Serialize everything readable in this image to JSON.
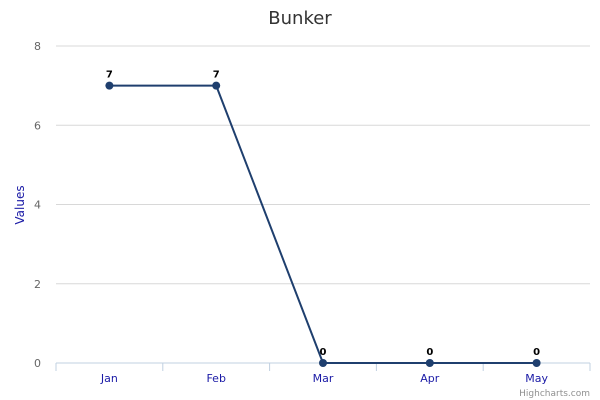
{
  "chart_data": {
    "type": "line",
    "title": "Bunker",
    "xlabel": "",
    "ylabel": "Values",
    "categories": [
      "Jan",
      "Feb",
      "Mar",
      "Apr",
      "May"
    ],
    "series": [
      {
        "values": [
          7,
          7,
          0,
          0,
          0
        ],
        "color": "#1f3f6e"
      }
    ],
    "ylim": [
      0,
      8
    ],
    "yticks": [
      "0",
      "2",
      "4",
      "6",
      "8"
    ],
    "data_labels": [
      "7",
      "7",
      "0",
      "0",
      "0"
    ],
    "grid": true,
    "legend": "none",
    "colors": {
      "axis_label": "#1a1aa6",
      "x_tick_label": "#1a1aa6",
      "y_tick_label": "#666666",
      "gridline": "#d8d8d8",
      "axis_line": "#c0d0e0"
    },
    "credits": "Highcharts.com"
  }
}
